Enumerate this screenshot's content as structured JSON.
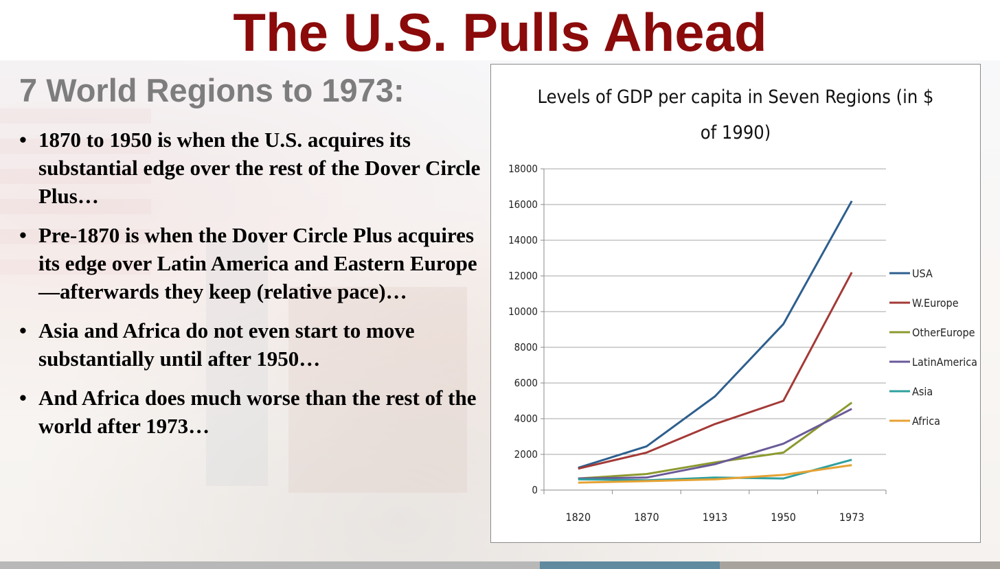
{
  "slide": {
    "title": "The U.S. Pulls Ahead",
    "subtitle": "7 World Regions to 1973:",
    "bullets": [
      "1870 to 1950 is when the U.S. acquires its substantial edge over the rest of the Dover Circle Plus…",
      "Pre-1870 is when the Dover Circle Plus acquires its edge over Latin America and Eastern Europe—afterwards they keep (relative pace)…",
      "Asia and Africa do not even start to move substantially until after 1950…",
      "And Africa does much worse than the rest of the world after 1973…"
    ]
  },
  "chart_data": {
    "type": "line",
    "title": "Levels of GDP per capita in Seven Regions (in $ of 1990)",
    "title_lines": [
      "Levels of GDP per capita in Seven Regions (in $",
      "of  1990)"
    ],
    "categories": [
      "1820",
      "1870",
      "1913",
      "1950",
      "1973"
    ],
    "ylim": [
      0,
      18000
    ],
    "yticks": [
      0,
      2000,
      4000,
      6000,
      8000,
      10000,
      12000,
      14000,
      16000,
      18000
    ],
    "grid": true,
    "legend_position": "right",
    "series": [
      {
        "name": "USA",
        "color": "#2e5f8e",
        "values": [
          1250,
          2450,
          5250,
          9300,
          16200
        ]
      },
      {
        "name": "W.Europe",
        "color": "#a33a37",
        "values": [
          1200,
          2100,
          3700,
          5000,
          12200
        ]
      },
      {
        "name": "OtherEurope",
        "color": "#8c9a2f",
        "values": [
          650,
          900,
          1550,
          2100,
          4900
        ]
      },
      {
        "name": "LatinAmerica",
        "color": "#6a5a98",
        "values": [
          650,
          700,
          1450,
          2600,
          4550
        ]
      },
      {
        "name": "Asia",
        "color": "#2fa09e",
        "values": [
          600,
          550,
          700,
          650,
          1700
        ]
      },
      {
        "name": "Africa",
        "color": "#e6a233",
        "values": [
          420,
          500,
          600,
          850,
          1400
        ]
      }
    ]
  }
}
